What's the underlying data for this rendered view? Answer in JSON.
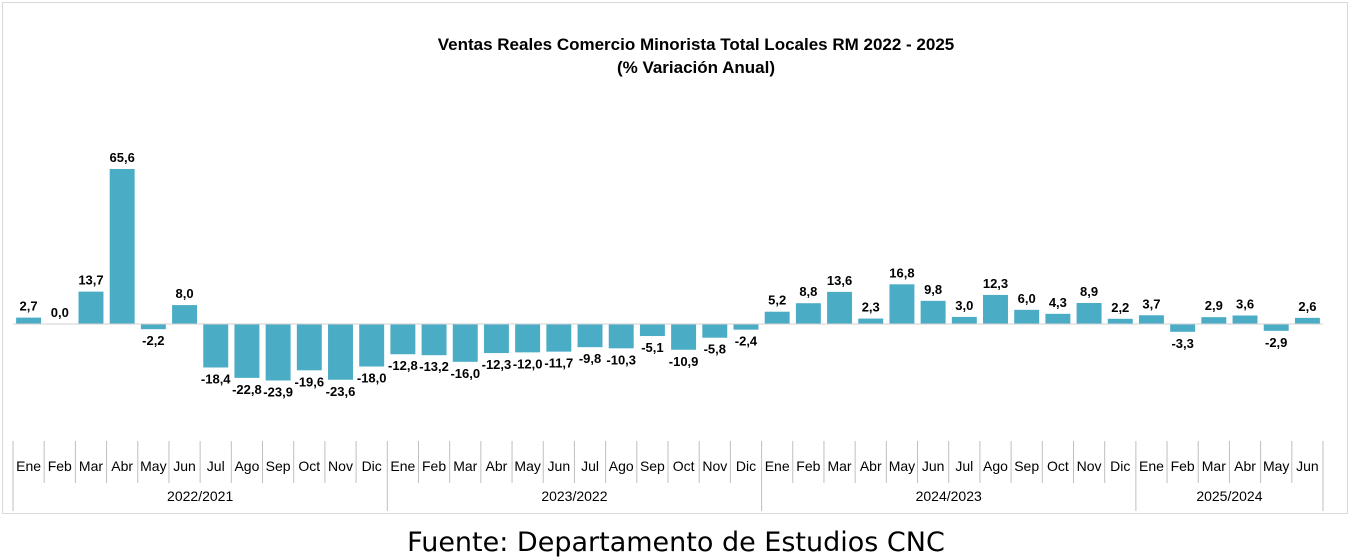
{
  "chart_data": {
    "type": "bar",
    "title": "Ventas Reales Comercio Minorista  Total Locales RM 2022 - 2025",
    "subtitle": "(% Variación Anual)",
    "bar_color": "#4bacc6",
    "groups": [
      {
        "label": "2022/2021",
        "categories": [
          "Ene",
          "Feb",
          "Mar",
          "Abr",
          "May",
          "Jun",
          "Jul",
          "Ago",
          "Sep",
          "Oct",
          "Nov",
          "Dic"
        ],
        "values": [
          2.7,
          0.0,
          13.7,
          65.6,
          -2.2,
          8.0,
          -18.4,
          -22.8,
          -23.9,
          -19.6,
          -23.6,
          -18.0
        ],
        "labels": [
          "2,7",
          "0,0",
          "13,7",
          "65,6",
          "-2,2",
          "8,0",
          "-18,4",
          "-22,8",
          "-23,9",
          "-19,6",
          "-23,6",
          "-18,0"
        ]
      },
      {
        "label": "2023/2022",
        "categories": [
          "Ene",
          "Feb",
          "Mar",
          "Abr",
          "May",
          "Jun",
          "Jul",
          "Ago",
          "Sep",
          "Oct",
          "Nov",
          "Dic"
        ],
        "values": [
          -12.8,
          -13.2,
          -16.0,
          -12.3,
          -12.0,
          -11.7,
          -9.8,
          -10.3,
          -5.1,
          -10.9,
          -5.8,
          -2.4
        ],
        "labels": [
          "-12,8",
          "-13,2",
          "-16,0",
          "-12,3",
          "-12,0",
          "-11,7",
          "-9,8",
          "-10,3",
          "-5,1",
          "-10,9",
          "-5,8",
          "-2,4"
        ]
      },
      {
        "label": "2024/2023",
        "categories": [
          "Ene",
          "Feb",
          "Mar",
          "Abr",
          "May",
          "Jun",
          "Jul",
          "Ago",
          "Sep",
          "Oct",
          "Nov",
          "Dic"
        ],
        "values": [
          5.2,
          8.8,
          13.6,
          2.3,
          16.8,
          9.8,
          3.0,
          12.3,
          6.0,
          4.3,
          8.9,
          2.2
        ],
        "labels": [
          "5,2",
          "8,8",
          "13,6",
          "2,3",
          "16,8",
          "9,8",
          "3,0",
          "12,3",
          "6,0",
          "4,3",
          "8,9",
          "2,2"
        ]
      },
      {
        "label": "2025/2024",
        "categories": [
          "Ene",
          "Feb",
          "Mar",
          "Abr",
          "May",
          "Jun"
        ],
        "values": [
          3.7,
          -3.3,
          2.9,
          3.6,
          -2.9,
          2.6
        ],
        "labels": [
          "3,7",
          "-3,3",
          "2,9",
          "3,6",
          "-2,9",
          "2,6"
        ]
      }
    ]
  },
  "source": "Fuente: Departamento de Estudios CNC"
}
